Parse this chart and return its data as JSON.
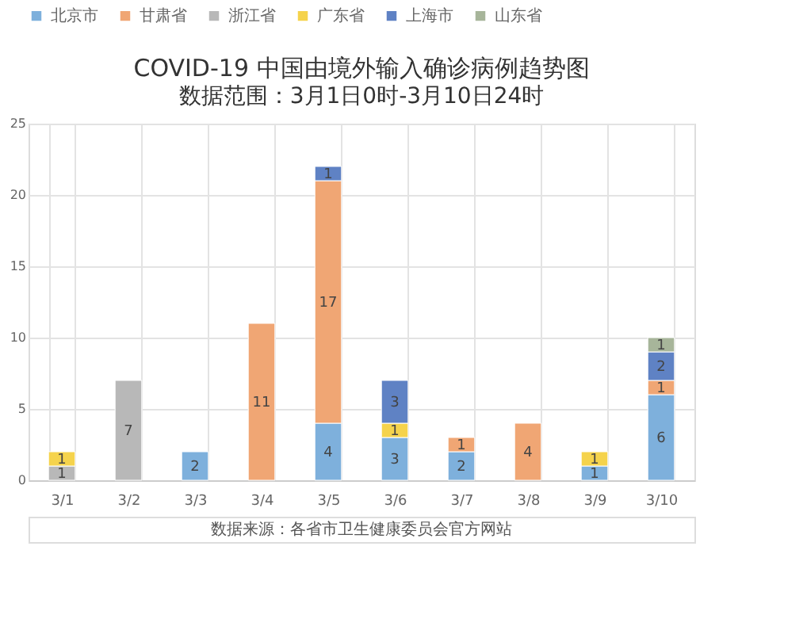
{
  "chart_data": {
    "type": "bar",
    "stacked": true,
    "title": "COVID-19 中国由境外输入确诊病例趋势图",
    "subtitle": "数据范围：3月1日0时-3月10日24时",
    "categories": [
      "3/1",
      "3/2",
      "3/3",
      "3/4",
      "3/5",
      "3/6",
      "3/7",
      "3/8",
      "3/9",
      "3/10"
    ],
    "series": [
      {
        "name": "北京市",
        "color": "#7eb0dc",
        "values": [
          null,
          null,
          2,
          null,
          4,
          3,
          2,
          null,
          1,
          6
        ]
      },
      {
        "name": "甘肃省",
        "color": "#f0a674",
        "values": [
          null,
          null,
          null,
          11,
          17,
          null,
          1,
          4,
          null,
          1
        ]
      },
      {
        "name": "浙江省",
        "color": "#b8b8b8",
        "values": [
          1,
          7,
          null,
          null,
          null,
          null,
          null,
          null,
          null,
          null
        ]
      },
      {
        "name": "广东省",
        "color": "#f5d34c",
        "values": [
          1,
          null,
          null,
          null,
          null,
          1,
          null,
          null,
          1,
          null
        ]
      },
      {
        "name": "上海市",
        "color": "#5f82c4",
        "values": [
          null,
          null,
          null,
          null,
          1,
          3,
          null,
          null,
          null,
          2
        ]
      },
      {
        "name": "山东省",
        "color": "#a7b59a",
        "values": [
          null,
          null,
          null,
          null,
          null,
          null,
          null,
          null,
          null,
          1
        ]
      }
    ],
    "ylim": [
      0,
      25
    ],
    "yticks": [
      0,
      5,
      10,
      15,
      20,
      25
    ],
    "grid": true,
    "legend": "top",
    "data_labels": true,
    "annotations": [
      "数据来源：各省市卫生健康委员会官方网站"
    ]
  }
}
